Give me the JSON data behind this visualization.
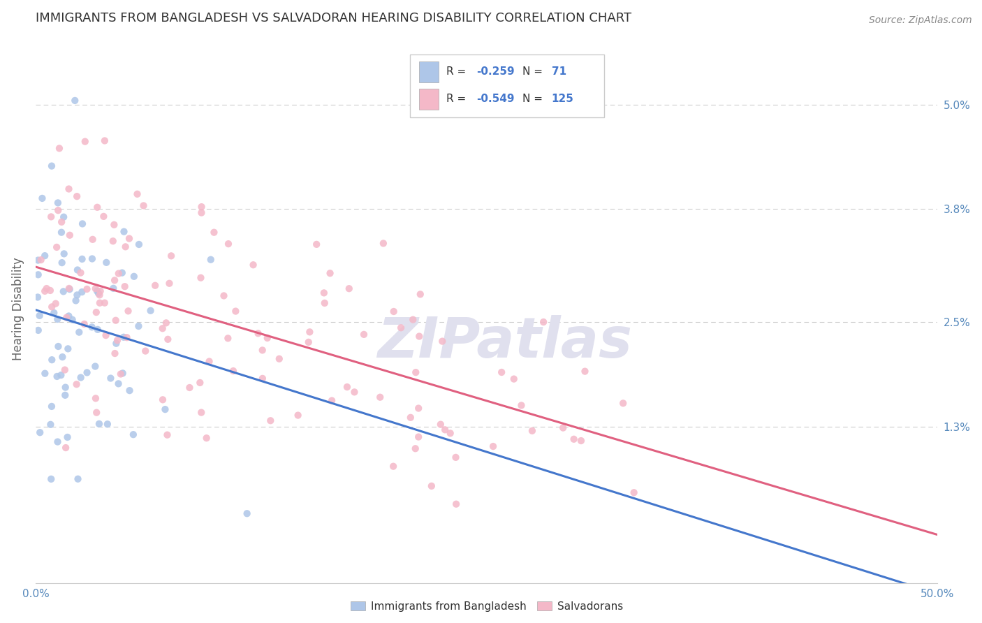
{
  "title": "IMMIGRANTS FROM BANGLADESH VS SALVADORAN HEARING DISABILITY CORRELATION CHART",
  "source": "Source: ZipAtlas.com",
  "ylabel": "Hearing Disability",
  "xlim": [
    0.0,
    0.5
  ],
  "ylim": [
    -0.005,
    0.058
  ],
  "color_bangladesh": "#aec6e8",
  "color_salvadoran": "#f4b8c8",
  "line_color_bangladesh": "#4477cc",
  "line_color_salvadoran": "#e06080",
  "R_bangladesh": -0.259,
  "N_bangladesh": 71,
  "R_salvadoran": -0.549,
  "N_salvadoran": 125,
  "legend_label_1": "Immigrants from Bangladesh",
  "legend_label_2": "Salvadorans",
  "background_color": "#ffffff",
  "grid_color": "#cccccc",
  "axis_label_color": "#5588bb",
  "watermark_text": "ZIPatlas",
  "watermark_color": "#e0e0ee",
  "ytick_vals": [
    0.013,
    0.025,
    0.038,
    0.05
  ],
  "ytick_labels": [
    "1.3%",
    "2.5%",
    "3.8%",
    "5.0%"
  ]
}
